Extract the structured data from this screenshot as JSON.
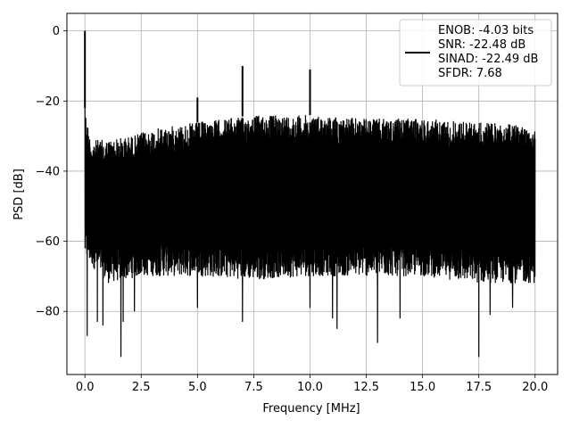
{
  "chart_data": {
    "type": "line",
    "xlabel": "Frequency [MHz]",
    "ylabel": "PSD [dB]",
    "xlim": [
      -0.8,
      21.0
    ],
    "ylim": [
      -98,
      5
    ],
    "x_ticks": [
      0.0,
      2.5,
      5.0,
      7.5,
      10.0,
      12.5,
      15.0,
      17.5,
      20.0
    ],
    "x_tick_labels": [
      "0.0",
      "2.5",
      "5.0",
      "7.5",
      "10.0",
      "12.5",
      "15.0",
      "17.5",
      "20.0"
    ],
    "y_ticks": [
      0,
      -20,
      -40,
      -60,
      -80
    ],
    "y_tick_labels": [
      "0",
      "−20",
      "−40",
      "−60",
      "−80"
    ],
    "grid": true,
    "legend_position": "top-right",
    "series": [
      {
        "line_label": "ENOB: -4.03 bits\nSNR: -22.48 dB\nSINAD: -22.49 dB\nSFDR: 7.68",
        "color": "#000000",
        "x_range": [
          0.0,
          20.0
        ],
        "noise_band": {
          "upper_envelope_db": [
            [
              0.0,
              -22
            ],
            [
              0.25,
              -31
            ],
            [
              1.0,
              -31
            ],
            [
              2.0,
              -30
            ],
            [
              3.0,
              -28
            ],
            [
              5.0,
              -26
            ],
            [
              7.5,
              -24
            ],
            [
              10.0,
              -24
            ],
            [
              12.5,
              -25
            ],
            [
              15.0,
              -25
            ],
            [
              17.5,
              -26
            ],
            [
              20.0,
              -27
            ]
          ],
          "lower_envelope_db": [
            [
              0.0,
              -65
            ],
            [
              1.0,
              -72
            ],
            [
              2.5,
              -70
            ],
            [
              5.0,
              -70
            ],
            [
              7.5,
              -71
            ],
            [
              10.0,
              -70
            ],
            [
              12.5,
              -70
            ],
            [
              15.0,
              -70
            ],
            [
              17.5,
              -72
            ],
            [
              20.0,
              -72
            ]
          ]
        },
        "peaks": [
          {
            "x": 0.0,
            "y": 0.0
          },
          {
            "x": 5.0,
            "y": -19
          },
          {
            "x": 7.0,
            "y": -10
          },
          {
            "x": 10.0,
            "y": -11
          }
        ],
        "dips": [
          {
            "x": 0.1,
            "y": -87
          },
          {
            "x": 0.55,
            "y": -83
          },
          {
            "x": 0.8,
            "y": -84
          },
          {
            "x": 1.6,
            "y": -93
          },
          {
            "x": 1.7,
            "y": -83
          },
          {
            "x": 2.2,
            "y": -80
          },
          {
            "x": 5.0,
            "y": -79
          },
          {
            "x": 7.0,
            "y": -83
          },
          {
            "x": 10.0,
            "y": -79
          },
          {
            "x": 11.0,
            "y": -82
          },
          {
            "x": 11.2,
            "y": -85
          },
          {
            "x": 13.0,
            "y": -89
          },
          {
            "x": 14.0,
            "y": -82
          },
          {
            "x": 17.5,
            "y": -93
          },
          {
            "x": 18.0,
            "y": -81
          },
          {
            "x": 19.0,
            "y": -79
          }
        ]
      }
    ]
  }
}
